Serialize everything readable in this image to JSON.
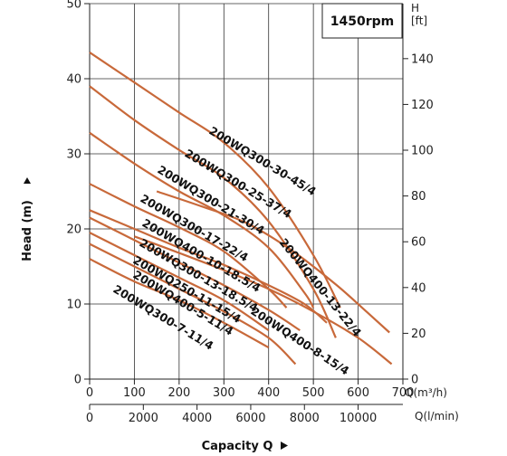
{
  "chart_data": {
    "type": "line",
    "speed_label": "1450rpm",
    "ylabel": "Head (m)",
    "xlabel": "Capacity Q",
    "y_right_unit_top": "H",
    "y_right_unit_bottom": "[ft]",
    "x_unit_m3h": "Q(m³/h)",
    "x_unit_lmin": "Q(l/min)",
    "xlim": [
      0,
      700
    ],
    "ylim": [
      0,
      50
    ],
    "y_ticks": [
      0,
      10,
      20,
      30,
      40,
      50
    ],
    "x_ticks_m3h": [
      0,
      100,
      200,
      300,
      400,
      500,
      600,
      700
    ],
    "x_ticks_lmin": [
      0,
      2000,
      4000,
      6000,
      8000,
      10000
    ],
    "y_ticks_ft": [
      0,
      20,
      40,
      60,
      80,
      100,
      120,
      140
    ],
    "grid": true,
    "series": [
      {
        "name": "200WQ300-30-45/4",
        "x": [
          0,
          100,
          200,
          300,
          400,
          500,
          560
        ],
        "y": [
          43.5,
          39.5,
          35.5,
          31.5,
          25.5,
          16.5,
          9.5
        ]
      },
      {
        "name": "200WQ300-25-37/4",
        "x": [
          0,
          100,
          200,
          300,
          400,
          500,
          550
        ],
        "y": [
          39.0,
          34.5,
          30.5,
          26.8,
          21.0,
          12.0,
          5.5
        ]
      },
      {
        "name": "200WQ300-21-30/4",
        "x": [
          0,
          100,
          200,
          300,
          400,
          480,
          500
        ],
        "y": [
          32.8,
          28.7,
          25.0,
          21.8,
          17.5,
          11.5,
          9.5
        ]
      },
      {
        "name": "200WQ400-13-22/4",
        "x": [
          150,
          250,
          350,
          450,
          550,
          620,
          670
        ],
        "y": [
          25.0,
          23.0,
          20.8,
          17.2,
          12.6,
          8.9,
          6.2
        ]
      },
      {
        "name": "200WQ300-17-22/4",
        "x": [
          0,
          100,
          200,
          300,
          400,
          440
        ],
        "y": [
          26.0,
          23.0,
          20.2,
          17.0,
          12.0,
          9.5
        ]
      },
      {
        "name": "200WQ400-10-18.5/4",
        "x": [
          0,
          100,
          200,
          300,
          400,
          480,
          530
        ],
        "y": [
          22.5,
          20.0,
          17.5,
          15.2,
          12.5,
          10.0,
          7.5
        ]
      },
      {
        "name": "200WQ400-8-15/4",
        "x": [
          100,
          200,
          300,
          400,
          500,
          600,
          675
        ],
        "y": [
          19.0,
          16.8,
          14.5,
          12.0,
          9.0,
          5.5,
          2.0
        ]
      },
      {
        "name": "200WQ300-13-18.5/4",
        "x": [
          0,
          100,
          200,
          300,
          400,
          470
        ],
        "y": [
          21.5,
          18.5,
          15.5,
          12.5,
          9.2,
          6.5
        ]
      },
      {
        "name": "200WQ250-11-15/4",
        "x": [
          0,
          100,
          200,
          300,
          400
        ],
        "y": [
          19.5,
          16.5,
          13.5,
          10.5,
          6.5
        ]
      },
      {
        "name": "200WQ400-5-11/4",
        "x": [
          0,
          100,
          200,
          300,
          400,
          460
        ],
        "y": [
          18.0,
          15.0,
          12.0,
          9.0,
          5.5,
          2.0
        ]
      },
      {
        "name": "200WQ300-7-11/4",
        "x": [
          0,
          100,
          200,
          300,
          400
        ],
        "y": [
          16.0,
          13.0,
          10.5,
          7.5,
          4.2
        ]
      }
    ]
  }
}
